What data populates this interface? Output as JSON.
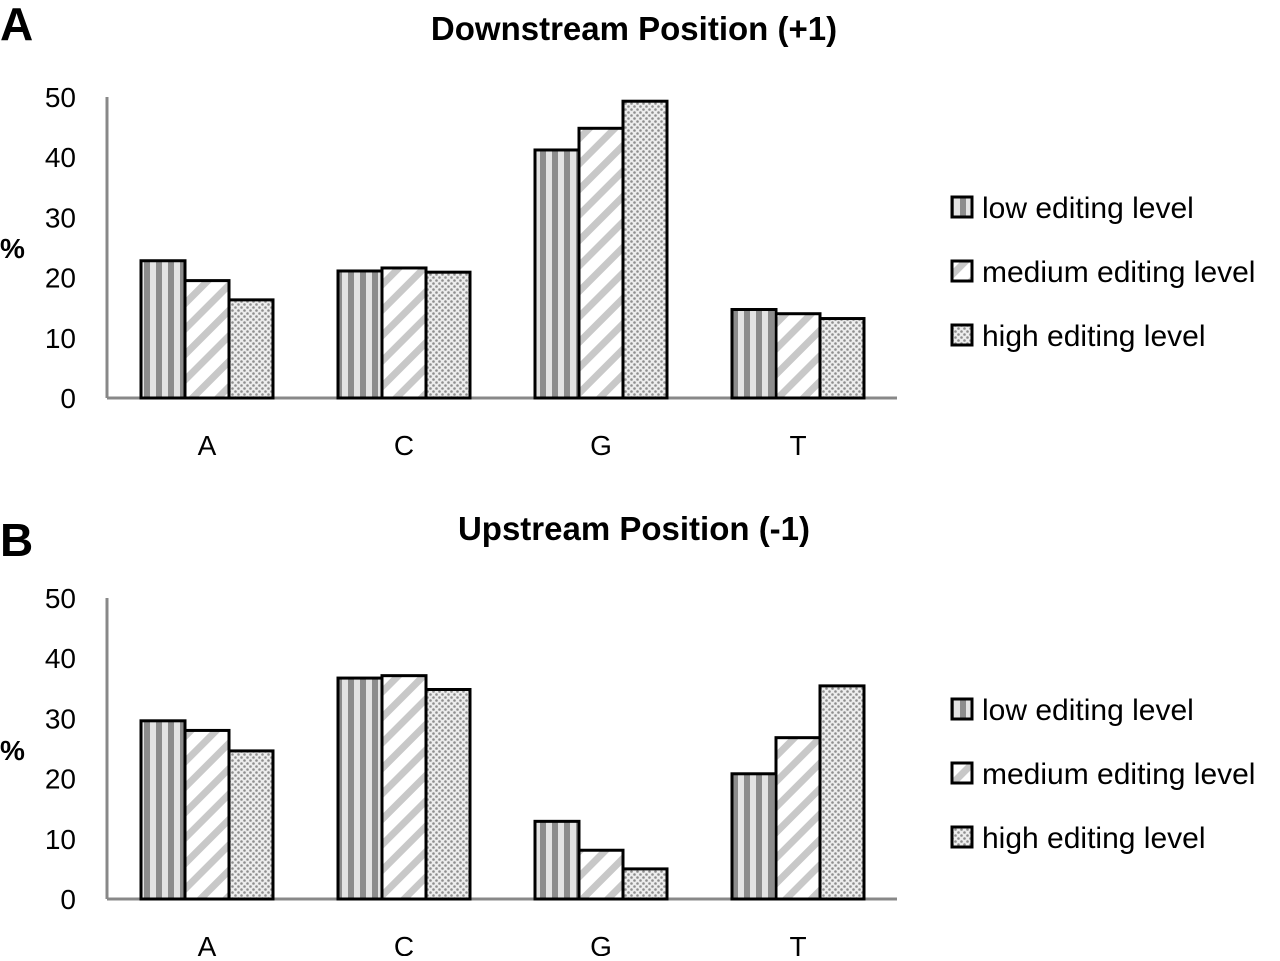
{
  "chart_data": [
    {
      "type": "bar",
      "panel": "A",
      "title": "Downstream Position (+1)",
      "xlabel": "",
      "ylabel": "%",
      "categories": [
        "A",
        "C",
        "G",
        "T"
      ],
      "yticks": [
        "0",
        "10",
        "20",
        "30",
        "40",
        "50"
      ],
      "ylim": [
        0,
        50
      ],
      "grid": false,
      "legend_position": "right",
      "series": [
        {
          "name": "low editing level",
          "pattern": "vertical-stripes",
          "values": [
            22.8,
            21.1,
            41.2,
            14.7
          ]
        },
        {
          "name": "medium editing level",
          "pattern": "diagonal-hatch",
          "values": [
            19.5,
            21.6,
            44.8,
            14.0
          ]
        },
        {
          "name": "high editing level",
          "pattern": "dotted",
          "values": [
            16.3,
            20.9,
            49.3,
            13.2
          ]
        }
      ]
    },
    {
      "type": "bar",
      "panel": "B",
      "title": "Upstream Position (-1)",
      "xlabel": "",
      "ylabel": "%",
      "categories": [
        "A",
        "C",
        "G",
        "T"
      ],
      "yticks": [
        "0",
        "10",
        "20",
        "30",
        "40",
        "50"
      ],
      "ylim": [
        0,
        50
      ],
      "grid": false,
      "legend_position": "right",
      "series": [
        {
          "name": "low editing level",
          "pattern": "vertical-stripes",
          "values": [
            29.6,
            36.7,
            12.9,
            20.8
          ]
        },
        {
          "name": "medium editing level",
          "pattern": "diagonal-hatch",
          "values": [
            28.0,
            37.1,
            8.1,
            26.8
          ]
        },
        {
          "name": "high editing level",
          "pattern": "dotted",
          "values": [
            24.6,
            34.8,
            5.0,
            35.4
          ]
        }
      ]
    }
  ],
  "colors": {
    "bar_outline": "#000000",
    "axis": "#888888",
    "stripe": "#888888",
    "hatch": "#c8c8c8",
    "dots": "#9a9a9a"
  }
}
